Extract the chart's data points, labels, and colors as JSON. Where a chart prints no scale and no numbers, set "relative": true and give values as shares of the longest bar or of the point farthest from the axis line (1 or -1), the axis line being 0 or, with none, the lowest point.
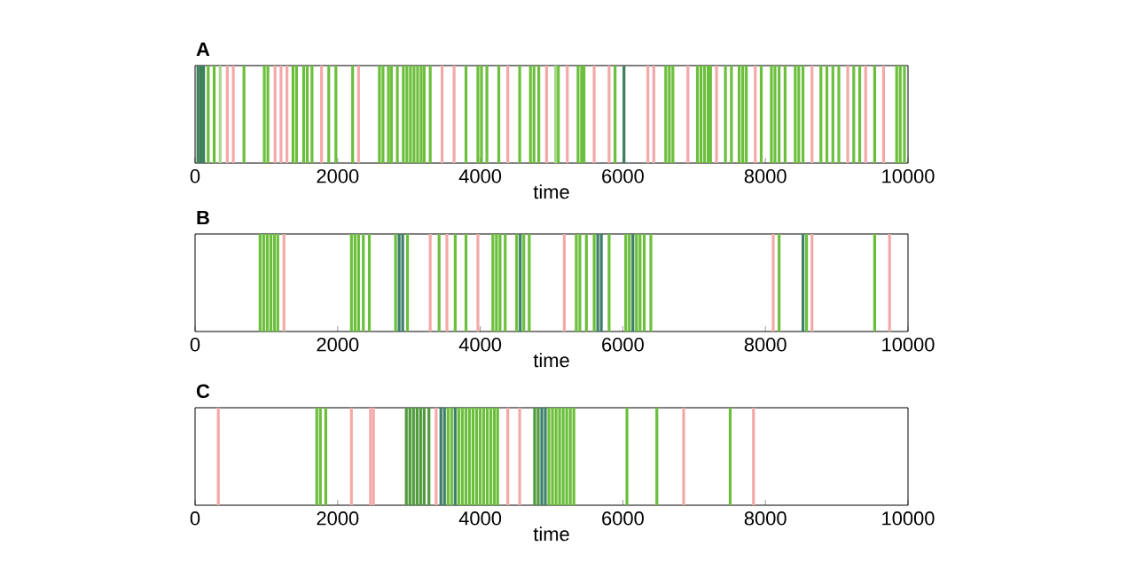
{
  "chart_data": [
    {
      "type": "bar",
      "title": "A",
      "xlabel": "time",
      "relative": true,
      "tick_labels": "x",
      "xlim": [
        0,
        10000
      ],
      "xticks": [
        0,
        2000,
        4000,
        6000,
        8000,
        10000
      ],
      "x": [
        40,
        80,
        120,
        184,
        268,
        352,
        452,
        536,
        686,
        971,
        1021,
        1122,
        1205,
        1289,
        1373,
        1423,
        1523,
        1573,
        1640,
        1774,
        1875,
        1975,
        2210,
        2293,
        2586,
        2636,
        2712,
        2754,
        2837,
        2921,
        2971,
        3021,
        3071,
        3121,
        3171,
        3214,
        3298,
        3465,
        3633,
        3800,
        3967,
        4017,
        4093,
        4260,
        4386,
        4553,
        4704,
        4754,
        4821,
        4930,
        5056,
        5096,
        5221,
        5372,
        5422,
        5455,
        5598,
        5807,
        5891,
        6016,
        6351,
        6435,
        6602,
        6652,
        6702,
        6912,
        7046,
        7096,
        7146,
        7196,
        7230,
        7314,
        7439,
        7523,
        7632,
        7682,
        7732,
        7858,
        7941,
        8084,
        8134,
        8192,
        8276,
        8418,
        8468,
        8527,
        8653,
        8778,
        8862,
        8946,
        9030,
        9155,
        9239,
        9322,
        9406,
        9532,
        9657,
        9841,
        9891,
        9950
      ],
      "values": [
        1,
        1,
        1,
        1,
        1,
        1,
        1,
        1,
        1,
        1,
        1,
        1,
        1,
        1,
        1,
        1,
        1,
        1,
        1,
        1,
        1,
        1,
        1,
        1,
        1,
        1,
        1,
        1,
        1,
        1,
        1,
        1,
        1,
        1,
        1,
        1,
        1,
        1,
        1,
        1,
        1,
        1,
        1,
        1,
        1,
        1,
        1,
        1,
        1,
        1,
        1,
        1,
        1,
        1,
        1,
        1,
        1,
        1,
        1,
        1,
        1,
        1,
        1,
        1,
        1,
        1,
        1,
        1,
        1,
        1,
        1,
        1,
        1,
        1,
        1,
        1,
        1,
        1,
        1,
        1,
        1,
        1,
        1,
        1,
        1,
        1,
        1,
        1,
        1,
        1,
        1,
        1,
        1,
        1,
        1,
        1,
        1,
        1,
        1,
        1
      ],
      "colors": [
        "#3d7f5a",
        "#3d7f5a",
        "#3d7f5a",
        "#6cbf3c",
        "#6cbf3c",
        "#a8d88a",
        "#f4a9a9",
        "#f4a9a9",
        "#6cbf3c",
        "#6cbf3c",
        "#6cbf3c",
        "#f4a9a9",
        "#f4a9a9",
        "#f4a9a9",
        "#6cbf3c",
        "#6cbf3c",
        "#6cbf3c",
        "#6cbf3c",
        "#6cbf3c",
        "#f4a9a9",
        "#6cbf3c",
        "#6cbf3c",
        "#6cbf3c",
        "#f4a9a9",
        "#6cbf3c",
        "#6cbf3c",
        "#6cbf3c",
        "#6cbf3c",
        "#6cbf3c",
        "#6cbf3c",
        "#6cbf3c",
        "#6cbf3c",
        "#6cbf3c",
        "#6cbf3c",
        "#6cbf3c",
        "#6cbf3c",
        "#6cbf3c",
        "#f4a9a9",
        "#f4a9a9",
        "#6cbf3c",
        "#6cbf3c",
        "#6cbf3c",
        "#6cbf3c",
        "#6cbf3c",
        "#f4a9a9",
        "#6cbf3c",
        "#6cbf3c",
        "#6cbf3c",
        "#6cbf3c",
        "#f4a9a9",
        "#a8d88a",
        "#6cbf3c",
        "#f4a9a9",
        "#6cbf3c",
        "#6cbf3c",
        "#6cbf3c",
        "#f4a9a9",
        "#f4a9a9",
        "#6cbf3c",
        "#3d7f5a",
        "#f4a9a9",
        "#f4a9a9",
        "#6cbf3c",
        "#6cbf3c",
        "#6cbf3c",
        "#f4a9a9",
        "#6cbf3c",
        "#6cbf3c",
        "#6cbf3c",
        "#6cbf3c",
        "#6cbf3c",
        "#f4a9a9",
        "#6cbf3c",
        "#6cbf3c",
        "#6cbf3c",
        "#6cbf3c",
        "#6cbf3c",
        "#f4a9a9",
        "#6cbf3c",
        "#6cbf3c",
        "#6cbf3c",
        "#6cbf3c",
        "#6cbf3c",
        "#6cbf3c",
        "#6cbf3c",
        "#6cbf3c",
        "#f4a9a9",
        "#6cbf3c",
        "#6cbf3c",
        "#6cbf3c",
        "#6cbf3c",
        "#f4a9a9",
        "#6cbf3c",
        "#6cbf3c",
        "#f4a9a9",
        "#6cbf3c",
        "#f4a9a9",
        "#6cbf3c",
        "#6cbf3c",
        "#6cbf3c"
      ]
    },
    {
      "type": "bar",
      "title": "B",
      "xlabel": "time",
      "relative": true,
      "tick_labels": "x",
      "xlim": [
        0,
        10000
      ],
      "xticks": [
        0,
        2000,
        4000,
        6000,
        8000,
        10000
      ],
      "x": [
        912,
        962,
        1012,
        1062,
        1112,
        1160,
        1247,
        2193,
        2243,
        2293,
        2360,
        2444,
        2812,
        2862,
        2912,
        2979,
        3298,
        3423,
        3532,
        3649,
        3800,
        3967,
        4177,
        4227,
        4277,
        4350,
        4511,
        4561,
        4611,
        4687,
        5179,
        5347,
        5397,
        5489,
        5598,
        5648,
        5698,
        5807,
        6041,
        6091,
        6141,
        6191,
        6241,
        6300,
        6393,
        8109,
        8192,
        8527,
        8577,
        8653,
        9532,
        9741
      ],
      "values": [
        1,
        1,
        1,
        1,
        1,
        1,
        1,
        1,
        1,
        1,
        1,
        1,
        1,
        1,
        1,
        1,
        1,
        1,
        1,
        1,
        1,
        1,
        1,
        1,
        1,
        1,
        1,
        1,
        1,
        1,
        1,
        1,
        1,
        1,
        1,
        1,
        1,
        1,
        1,
        1,
        1,
        1,
        1,
        1,
        1,
        1,
        1,
        1,
        1,
        1,
        1,
        1
      ],
      "colors": [
        "#6cbf3c",
        "#6cbf3c",
        "#6cbf3c",
        "#6cbf3c",
        "#6cbf3c",
        "#6cbf3c",
        "#f4a9a9",
        "#6cbf3c",
        "#6cbf3c",
        "#6cbf3c",
        "#6cbf3c",
        "#6cbf3c",
        "#6cbf3c",
        "#3d7f6a",
        "#3d7f6a",
        "#6cbf3c",
        "#f4a9a9",
        "#6cbf3c",
        "#f4a9a9",
        "#6cbf3c",
        "#6cbf3c",
        "#f4a9a9",
        "#6cbf3c",
        "#6cbf3c",
        "#6cbf3c",
        "#6cbf3c",
        "#6cbf3c",
        "#3d7f6a",
        "#6cbf3c",
        "#6cbf3c",
        "#f4a9a9",
        "#6cbf3c",
        "#6cbf3c",
        "#6cbf3c",
        "#6cbf3c",
        "#3d7f6a",
        "#3d7f6a",
        "#6cbf3c",
        "#6cbf3c",
        "#6cbf3c",
        "#3d7f6a",
        "#6cbf3c",
        "#6cbf3c",
        "#6cbf3c",
        "#6cbf3c",
        "#f4a9a9",
        "#6cbf3c",
        "#3d7f6a",
        "#6cbf3c",
        "#f4a9a9",
        "#6cbf3c",
        "#f4a9a9"
      ]
    },
    {
      "type": "bar",
      "title": "C",
      "xlabel": "time",
      "relative": true,
      "tick_labels": "x",
      "xlim": [
        0,
        10000
      ],
      "xticks": [
        0,
        2000,
        4000,
        6000,
        8000,
        10000
      ],
      "x": [
        326,
        1707,
        1757,
        1833,
        2193,
        2461,
        2502,
        2963,
        3013,
        3063,
        3113,
        3163,
        3213,
        3280,
        3381,
        3448,
        3498,
        3548,
        3598,
        3648,
        3698,
        3748,
        3798,
        3848,
        3898,
        3948,
        3998,
        4048,
        4098,
        4148,
        4198,
        4244,
        4386,
        4553,
        4763,
        4813,
        4863,
        4913,
        4963,
        5013,
        5063,
        5113,
        5163,
        5213,
        5263,
        5313,
        6058,
        6477,
        6853,
        7506,
        7833
      ],
      "values": [
        1,
        1,
        1,
        1,
        1,
        1,
        1,
        1,
        1,
        1,
        1,
        1,
        1,
        1,
        1,
        1,
        1,
        1,
        1,
        1,
        1,
        1,
        1,
        1,
        1,
        1,
        1,
        1,
        1,
        1,
        1,
        1,
        1,
        1,
        1,
        1,
        1,
        1,
        1,
        1,
        1,
        1,
        1,
        1,
        1,
        1,
        1,
        1,
        1,
        1,
        1
      ],
      "colors": [
        "#f4a9a9",
        "#6cbf3c",
        "#6cbf3c",
        "#6cbf3c",
        "#f4a9a9",
        "#f4a9a9",
        "#f4a9a9",
        "#4f9a3c",
        "#4f9a3c",
        "#4f9a3c",
        "#4f9a3c",
        "#4f9a3c",
        "#4f9a3c",
        "#4f9a3c",
        "#f4a9a9",
        "#3d7f6a",
        "#3d7f6a",
        "#6cbf3c",
        "#6cbf3c",
        "#3d7f6a",
        "#6cbf3c",
        "#6cbf3c",
        "#6cbf3c",
        "#6cbf3c",
        "#6cbf3c",
        "#6cbf3c",
        "#6cbf3c",
        "#6cbf3c",
        "#6cbf3c",
        "#6cbf3c",
        "#6cbf3c",
        "#6cbf3c",
        "#f4a9a9",
        "#f4a9a9",
        "#4f9a3c",
        "#4f9a3c",
        "#3d7f6a",
        "#3d7f6a",
        "#6cbf3c",
        "#6cbf3c",
        "#6cbf3c",
        "#6cbf3c",
        "#6cbf3c",
        "#6cbf3c",
        "#6cbf3c",
        "#6cbf3c",
        "#6cbf3c",
        "#6cbf3c",
        "#f4a9a9",
        "#6cbf3c",
        "#f4a9a9"
      ]
    }
  ]
}
